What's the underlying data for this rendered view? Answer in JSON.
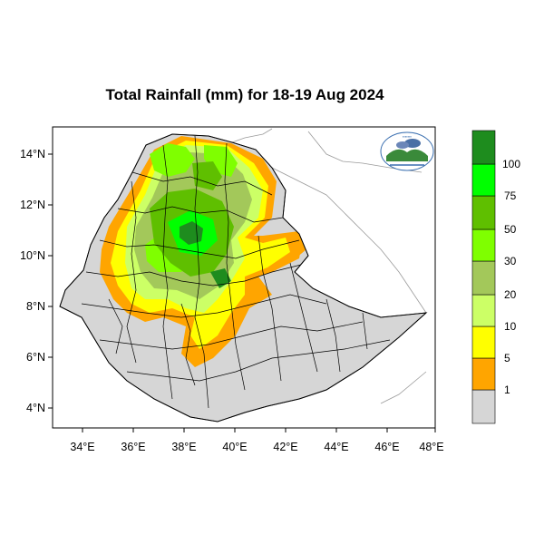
{
  "title": "Total Rainfall (mm) for 18-19 Aug 2024",
  "map": {
    "lon_range": [
      33,
      48
    ],
    "lat_range": [
      3.2,
      15
    ],
    "x_ticks": [
      "34°E",
      "36°E",
      "38°E",
      "40°E",
      "42°E",
      "44°E",
      "46°E",
      "48°E"
    ],
    "y_ticks": [
      "4°N",
      "6°N",
      "8°N",
      "10°N",
      "12°N",
      "14°N"
    ],
    "background_color": "#ffffff",
    "country_fill": "#d6d6d6"
  },
  "colorbar": {
    "labels": [
      "1",
      "5",
      "10",
      "20",
      "30",
      "50",
      "75",
      "100"
    ],
    "colors": [
      "#d6d6d6",
      "#ffa500",
      "#ffff00",
      "#ccff66",
      "#a3c85a",
      "#7fff00",
      "#5fbf00",
      "#00ff00",
      "#1e8c1e"
    ]
  },
  "logo": {
    "icon": "meteorology-agency-logo"
  }
}
